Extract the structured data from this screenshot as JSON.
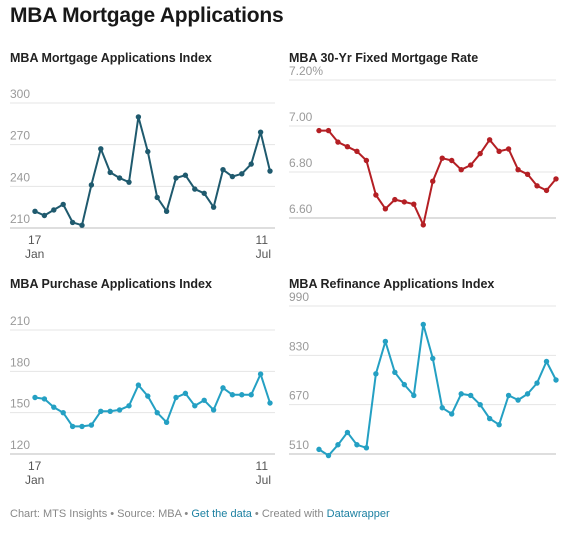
{
  "title": "MBA Mortgage Applications",
  "footer": {
    "prefix": "Chart: MTS Insights • Source: MBA • ",
    "link_text": "Get the data",
    "middle": " • Created with ",
    "credit": "Datawrapper"
  },
  "chart_data": [
    {
      "type": "line",
      "title": "MBA Mortgage Applications Index",
      "color": "#1f5a6e",
      "ylim": [
        207,
        300
      ],
      "y_ticks": [
        300,
        270,
        240,
        210
      ],
      "y_tick_labels": [
        "300",
        "270",
        "240",
        "210"
      ],
      "x_tick_labels": [
        {
          "top": "17",
          "bottom": "Jan",
          "index": 0,
          "anchor": "start"
        },
        {
          "top": "11",
          "bottom": "Jul",
          "index": 25,
          "anchor": "end"
        }
      ],
      "values": [
        222,
        219,
        223,
        227,
        214,
        212,
        241,
        267,
        250,
        246,
        243,
        290,
        265,
        232,
        222,
        246,
        248,
        238,
        235,
        225,
        252,
        247,
        249,
        256,
        279,
        251
      ]
    },
    {
      "type": "line",
      "title": "MBA 30-Yr Fixed Mortgage Rate",
      "color": "#b41f24",
      "ylim": [
        6.55,
        7.2
      ],
      "y_ticks": [
        7.2,
        7.0,
        6.8,
        6.6
      ],
      "y_tick_labels": [
        "7.20%",
        "7.00",
        "6.80",
        "6.60"
      ],
      "x_tick_labels": [],
      "values": [
        6.98,
        6.98,
        6.93,
        6.91,
        6.89,
        6.85,
        6.7,
        6.64,
        6.68,
        6.67,
        6.66,
        6.57,
        6.76,
        6.86,
        6.85,
        6.81,
        6.83,
        6.88,
        6.94,
        6.89,
        6.9,
        6.81,
        6.79,
        6.74,
        6.72,
        6.77
      ]
    },
    {
      "type": "line",
      "title": "MBA Purchase Applications Index",
      "color": "#24a0c3",
      "ylim": [
        114,
        210
      ],
      "y_ticks": [
        210,
        180,
        150,
        120
      ],
      "y_tick_labels": [
        "210",
        "180",
        "150",
        "120"
      ],
      "x_tick_labels": [
        {
          "top": "17",
          "bottom": "Jan",
          "index": 0,
          "anchor": "start"
        },
        {
          "top": "11",
          "bottom": "Jul",
          "index": 25,
          "anchor": "end"
        }
      ],
      "values": [
        161,
        160,
        154,
        150,
        140,
        140,
        141,
        151,
        151,
        152,
        155,
        170,
        162,
        150,
        143,
        161,
        164,
        155,
        159,
        152,
        168,
        163,
        163,
        163,
        178,
        157
      ]
    },
    {
      "type": "line",
      "title": "MBA Refinance Applications Index",
      "color": "#24a0c3",
      "ylim": [
        475,
        990
      ],
      "y_ticks": [
        990,
        830,
        670,
        510
      ],
      "y_tick_labels": [
        "990",
        "830",
        "670",
        "510"
      ],
      "x_tick_labels": [],
      "values": [
        525,
        505,
        540,
        580,
        540,
        530,
        770,
        875,
        775,
        735,
        700,
        930,
        820,
        660,
        640,
        705,
        700,
        670,
        625,
        605,
        700,
        685,
        705,
        740,
        810,
        750
      ]
    }
  ]
}
